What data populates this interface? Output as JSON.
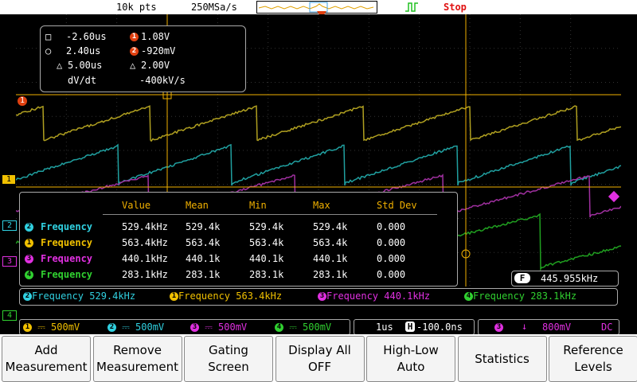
{
  "topbar": {
    "memory_depth": "10k pts",
    "sample_rate": "250MSa/s",
    "run_state": "Stop"
  },
  "cursors": {
    "ax_label": "-2.60us",
    "ay_label": "1.08V",
    "bx_label": "2.40us",
    "by_label": "-920mV",
    "dx_label": "5.00us",
    "dy_label": "2.00V",
    "rate_name": "dV/dt",
    "rate_value": "-400kV/s"
  },
  "meas_table": {
    "headers": [
      "Value",
      "Mean",
      "Min",
      "Max",
      "Std Dev"
    ],
    "rows": [
      {
        "channel": "2",
        "name": "Frequency",
        "value": "529.4kHz",
        "mean": "529.4k",
        "min": "529.4k",
        "max": "529.4k",
        "std": "0.000",
        "color": "#30d0e0"
      },
      {
        "channel": "1",
        "name": "Frequency",
        "value": "563.4kHz",
        "mean": "563.4k",
        "min": "563.4k",
        "max": "563.4k",
        "std": "0.000",
        "color": "#f0c000"
      },
      {
        "channel": "3",
        "name": "Frequency",
        "value": "440.1kHz",
        "mean": "440.1k",
        "min": "440.1k",
        "max": "440.1k",
        "std": "0.000",
        "color": "#e030e0"
      },
      {
        "channel": "4",
        "name": "Frequency",
        "value": "283.1kHz",
        "mean": "283.1k",
        "min": "283.1k",
        "max": "283.1k",
        "std": "0.000",
        "color": "#30d030"
      }
    ]
  },
  "counter": {
    "label": "F",
    "value": "445.955kHz"
  },
  "meas_bar": [
    {
      "channel": "2",
      "text": "Frequency 529.4kHz",
      "color": "#30d0e0"
    },
    {
      "channel": "1",
      "text": "Frequency 563.4kHz",
      "color": "#f0c000"
    },
    {
      "channel": "3",
      "text": "Frequency 440.1kHz",
      "color": "#e030e0"
    },
    {
      "channel": "4",
      "text": "Frequency 283.1kHz",
      "color": "#30d030"
    }
  ],
  "channel_markers": [
    "1",
    "2",
    "3",
    "4"
  ],
  "channels": [
    {
      "num": "1",
      "scale": "500mV",
      "color": "#f0c000"
    },
    {
      "num": "2",
      "scale": "500mV",
      "color": "#30d0e0"
    },
    {
      "num": "3",
      "scale": "500mV",
      "color": "#e030e0"
    },
    {
      "num": "4",
      "scale": "500mV",
      "color": "#30d030"
    }
  ],
  "timebase": {
    "scale": "1us",
    "position_label": "H",
    "position": "-100.0ns"
  },
  "trigger": {
    "source": "3",
    "level": "800mV",
    "coupling": "DC",
    "color": "#e030e0"
  },
  "softkeys": [
    {
      "line1": "Add",
      "line2": "Measurement"
    },
    {
      "line1": "Remove",
      "line2": "Measurement"
    },
    {
      "line1": "Gating",
      "line2": "Screen"
    },
    {
      "line1": "Display All",
      "line2": "OFF"
    },
    {
      "line1": "High-Low",
      "line2": "Auto"
    },
    {
      "line1": "Statistics",
      "line2": ""
    },
    {
      "line1": "Reference",
      "line2": "Levels"
    }
  ],
  "colors": {
    "ch1": "#f0c000",
    "ch2": "#30d0e0",
    "ch3": "#e030e0",
    "ch4": "#30d030",
    "trace1": "#b0a020",
    "trace2": "#20a0a0",
    "trace3": "#a030a0",
    "trace4": "#20a020",
    "cursor": "#f0b000",
    "stop": "#e01010"
  }
}
